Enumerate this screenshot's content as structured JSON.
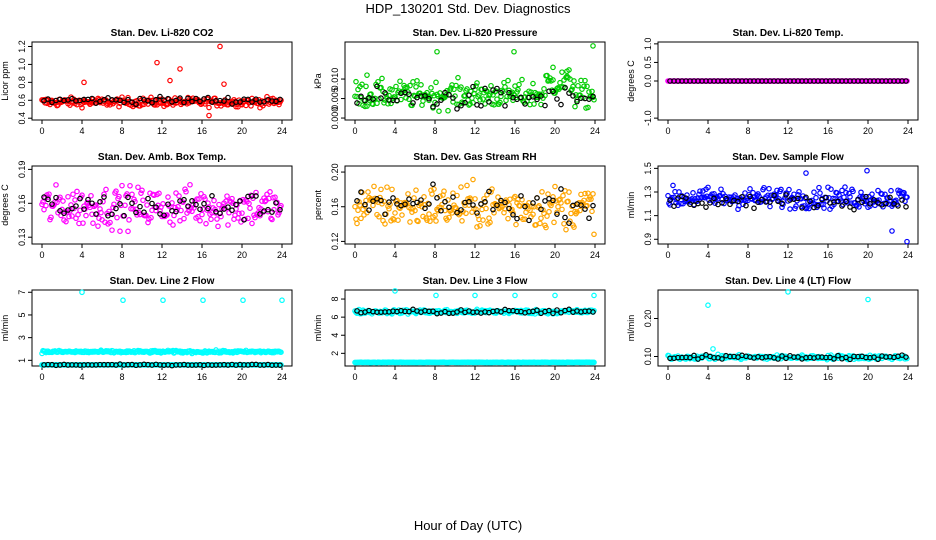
{
  "page": {
    "title": "HDP_130201  Std. Dev. Diagnostics",
    "xlabel": "Hour of Day (UTC)"
  },
  "chart_data": [
    {
      "type": "scatter",
      "title": "Stan. Dev. Li-820 CO2",
      "ylabel": "Licor ppm",
      "color": "#ff0000",
      "xlim": [
        -1,
        25
      ],
      "ylim": [
        0.38,
        1.25
      ],
      "xticks": [
        "0",
        "4",
        "8",
        "12",
        "16",
        "20",
        "24"
      ],
      "yticks": [
        "0.4",
        "0.6",
        "0.8",
        "1.0",
        "1.2"
      ],
      "base": 0.58,
      "spread": 0.05,
      "black_base": 0.6,
      "black_spread": 0.04,
      "outliers": [
        [
          4.2,
          0.8
        ],
        [
          11.5,
          1.02
        ],
        [
          12.8,
          0.82
        ],
        [
          17.8,
          1.2
        ],
        [
          18.2,
          0.78
        ],
        [
          13.8,
          0.95
        ],
        [
          16.7,
          0.43
        ]
      ]
    },
    {
      "type": "scatter",
      "title": "Stan. Dev. Li-820 Pressure",
      "ylabel": "kPa",
      "color": "#00cc00",
      "xlim": [
        -1,
        25
      ],
      "ylim": [
        -0.0005,
        0.0195
      ],
      "xticks": [
        "0",
        "4",
        "8",
        "12",
        "16",
        "20",
        "24"
      ],
      "yticks": [
        "0.000",
        "0.005",
        "0.010"
      ],
      "base": 0.006,
      "spread": 0.0035,
      "black_base": 0.005,
      "black_spread": 0.003,
      "outliers": [
        [
          8.2,
          0.017
        ],
        [
          15.9,
          0.017
        ],
        [
          23.8,
          0.0185
        ],
        [
          19.8,
          0.013
        ],
        [
          21.2,
          0.012
        ],
        [
          1.2,
          0.011
        ]
      ]
    },
    {
      "type": "scatter",
      "title": "Stan. Dev. Li-820 Temp.",
      "ylabel": "degrees C",
      "color": "#ff00ff",
      "xlim": [
        -1,
        25
      ],
      "ylim": [
        -1.05,
        1.05
      ],
      "xticks": [
        "0",
        "4",
        "8",
        "12",
        "16",
        "20",
        "24"
      ],
      "yticks": [
        "-1.0",
        "0.0",
        "0.5",
        "1.0"
      ],
      "base": 0.0,
      "spread": 0.0,
      "black_base": 0.0,
      "black_spread": 0.0,
      "outliers": []
    },
    {
      "type": "scatter",
      "title": "Stan. Dev. Amb. Box Temp.",
      "ylabel": "degrees C",
      "color": "#ff00ff",
      "xlim": [
        -1,
        25
      ],
      "ylim": [
        0.124,
        0.193
      ],
      "xticks": [
        "0",
        "4",
        "8",
        "12",
        "16",
        "20",
        "24"
      ],
      "yticks": [
        "0.13",
        "0.16",
        "0.19"
      ],
      "base": 0.157,
      "spread": 0.018,
      "black_base": 0.157,
      "black_spread": 0.012,
      "outliers": []
    },
    {
      "type": "scatter",
      "title": "Stan. Dev. Gas Stream RH",
      "ylabel": "percent",
      "color": "#ffa500",
      "xlim": [
        -1,
        25
      ],
      "ylim": [
        0.117,
        0.207
      ],
      "xticks": [
        "0",
        "4",
        "8",
        "12",
        "16",
        "20",
        "24"
      ],
      "yticks": [
        "0.12",
        "0.16",
        "0.20"
      ],
      "base": 0.16,
      "spread": 0.025,
      "black_base": 0.162,
      "black_spread": 0.017,
      "outliers": []
    },
    {
      "type": "scatter",
      "title": "Stan. Dev. Sample Flow",
      "ylabel": "ml/min",
      "color": "#0000ff",
      "xlim": [
        -1,
        25
      ],
      "ylim": [
        0.86,
        1.52
      ],
      "xticks": [
        "0",
        "4",
        "8",
        "12",
        "16",
        "20",
        "24"
      ],
      "yticks": [
        "0.9",
        "1.1",
        "1.3",
        "1.5"
      ],
      "base": 1.25,
      "spread": 0.09,
      "black_base": 1.22,
      "black_spread": 0.06,
      "outliers": [
        [
          23.9,
          0.88
        ],
        [
          22.4,
          0.97
        ],
        [
          19.9,
          1.48
        ],
        [
          13.8,
          1.46
        ]
      ]
    },
    {
      "type": "scatter",
      "title": "Stan. Dev. Line 2 Flow",
      "ylabel": "ml/min",
      "color": "#00ffff",
      "xlim": [
        -1,
        25
      ],
      "ylim": [
        0.5,
        7.2
      ],
      "xticks": [
        "0",
        "4",
        "8",
        "12",
        "16",
        "20",
        "24"
      ],
      "yticks": [
        "1",
        "3",
        "5",
        "7"
      ],
      "base": 1.75,
      "spread": 0.12,
      "black_base": 0.6,
      "black_spread": 0.05,
      "layer": true,
      "outliers": [
        [
          4.0,
          7.0
        ],
        [
          8.1,
          6.3
        ],
        [
          12.1,
          6.3
        ],
        [
          16.1,
          6.3
        ],
        [
          20.1,
          6.3
        ],
        [
          24.0,
          6.3
        ]
      ]
    },
    {
      "type": "scatter",
      "title": "Stan. Dev. Line 3 Flow",
      "ylabel": "ml/min",
      "color": "#00ffff",
      "xlim": [
        -1,
        25
      ],
      "ylim": [
        0.6,
        9.0
      ],
      "xticks": [
        "0",
        "4",
        "8",
        "12",
        "16",
        "20",
        "24"
      ],
      "yticks": [
        "2",
        "4",
        "6",
        "8"
      ],
      "base": 6.6,
      "spread": 0.25,
      "black_base": 6.6,
      "black_spread": 0.25,
      "second": 1.0,
      "outliers": [
        [
          4.0,
          8.9
        ],
        [
          8.1,
          8.4
        ],
        [
          12.0,
          8.4
        ],
        [
          16.0,
          8.4
        ],
        [
          20.0,
          8.4
        ],
        [
          23.9,
          8.4
        ]
      ]
    },
    {
      "type": "scatter",
      "title": "Stan. Dev. Line 4 (LT) Flow",
      "ylabel": "ml/min",
      "color": "#00ffff",
      "xlim": [
        -1,
        25
      ],
      "ylim": [
        0.075,
        0.275
      ],
      "xticks": [
        "0",
        "4",
        "8",
        "12",
        "16",
        "20",
        "24"
      ],
      "yticks": [
        "0.10",
        "0.20"
      ],
      "base": 0.098,
      "spread": 0.006,
      "black_base": 0.098,
      "black_spread": 0.006,
      "outliers": [
        [
          4.0,
          0.235
        ],
        [
          12.0,
          0.27
        ],
        [
          20.0,
          0.25
        ],
        [
          4.5,
          0.12
        ]
      ]
    }
  ]
}
